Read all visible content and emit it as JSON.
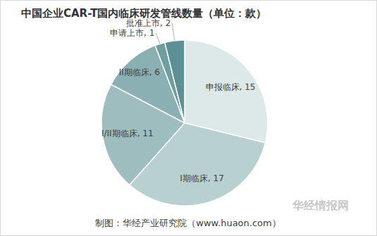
{
  "chart_data": {
    "type": "pie",
    "title": "中国企业CAR-T国内临床研发管线数量（单位：款）",
    "categories": [
      "申报临床",
      "I期临床",
      "I/II期临床",
      "II期临床",
      "申请上市",
      "批准上市"
    ],
    "values": [
      15,
      17,
      11,
      6,
      1,
      2
    ],
    "colors": [
      "#dde8e8",
      "#b9d0d1",
      "#9ebdbf",
      "#8bb0b3",
      "#6f9ea2",
      "#5c9095"
    ],
    "data_labels": true,
    "source": "制图：华经产业研究院（www.huaon.com）",
    "watermark": "华经情报网"
  }
}
